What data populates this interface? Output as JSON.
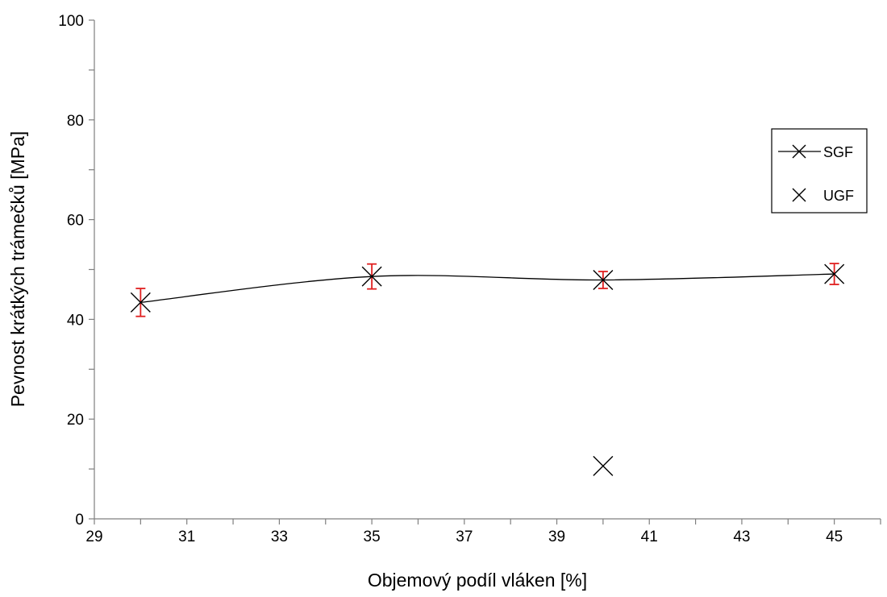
{
  "chart_data": {
    "type": "scatter",
    "xlabel": "Objemový podíl vláken [%]",
    "ylabel": "Pevnost krátkých trámečků [MPa]",
    "xlim": [
      29,
      46
    ],
    "ylim": [
      0,
      100
    ],
    "x_ticks": [
      29,
      31,
      33,
      35,
      37,
      39,
      41,
      43,
      45
    ],
    "y_ticks": [
      0,
      20,
      40,
      60,
      80,
      100
    ],
    "grid": false,
    "legend_position": "right",
    "series": [
      {
        "name": "SGF",
        "marker": "x",
        "line": "smooth",
        "color": "#000000",
        "errorbar_color": "#e02020",
        "x": [
          30,
          35,
          40,
          45
        ],
        "y": [
          43.4,
          48.6,
          47.9,
          49.1
        ],
        "error": [
          2.8,
          2.5,
          1.7,
          2.1
        ]
      },
      {
        "name": "UGF",
        "marker": "x",
        "line": "none",
        "color": "#000000",
        "x": [
          40
        ],
        "y": [
          10.6
        ]
      }
    ]
  }
}
